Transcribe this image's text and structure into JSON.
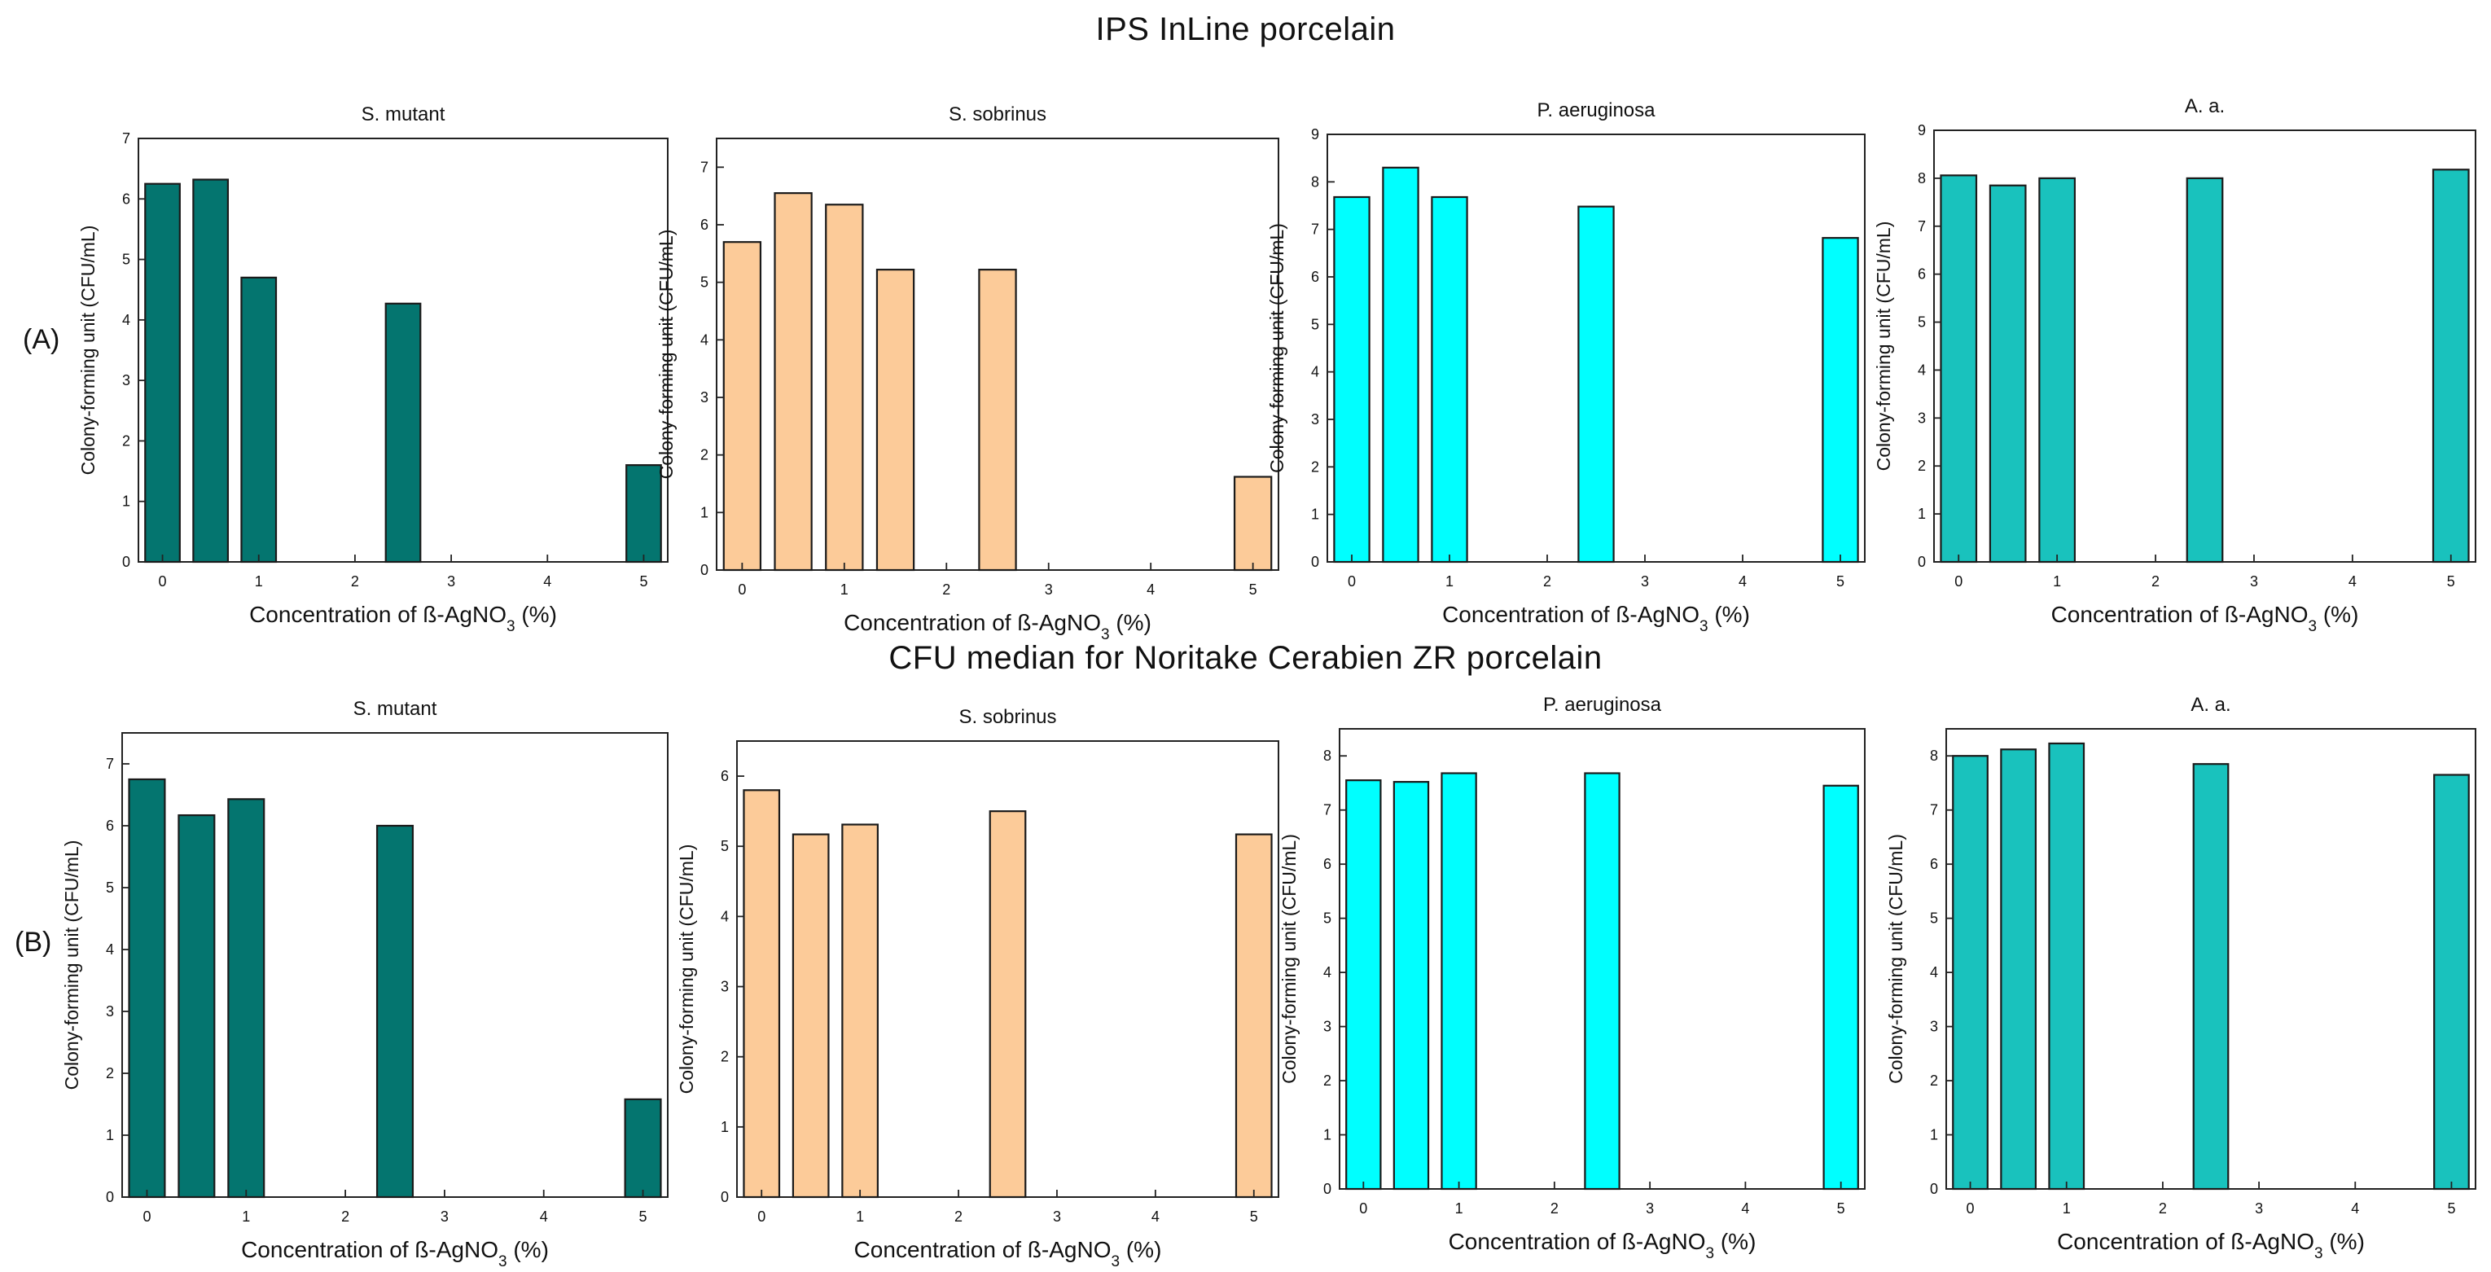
{
  "figure": {
    "title_a": "IPS InLine porcelain",
    "title_b": "CFU median for Noritake Cerabien ZR porcelain",
    "label_a": "(A)",
    "label_b": "(B)"
  },
  "chart_data": [
    {
      "type": "bar",
      "row": "A",
      "title": "S. mutant",
      "color": "#04756F",
      "categories": [
        0,
        0.5,
        1,
        1.5,
        2,
        2.5,
        3,
        4,
        5
      ],
      "values": [
        6.25,
        6.32,
        4.7,
        0,
        0,
        4.27,
        0,
        0,
        1.6
      ],
      "ylim": [
        0,
        7
      ],
      "yticks": [
        0,
        1,
        2,
        3,
        4,
        5,
        6,
        7
      ],
      "xticks": [
        0,
        1,
        2,
        3,
        4,
        5
      ],
      "xlabel": "Concentration of ß-AgNO3 (%)",
      "ylabel": "Colony-forming unit (CFU/mL)"
    },
    {
      "type": "bar",
      "row": "A",
      "title": "S. sobrinus",
      "color": "#FCCB99",
      "categories": [
        0,
        0.5,
        1,
        1.5,
        2,
        2.5,
        3,
        4,
        5
      ],
      "values": [
        5.7,
        6.55,
        6.35,
        5.22,
        0,
        5.22,
        0,
        0,
        1.62
      ],
      "ylim": [
        0,
        7.5
      ],
      "yticks": [
        0,
        1,
        2,
        3,
        4,
        5,
        6,
        7
      ],
      "xticks": [
        0,
        1,
        2,
        3,
        4,
        5
      ],
      "xlabel": "Concentration of ß-AgNO3 (%)",
      "ylabel": "Colony-forming unit (CFU/mL)"
    },
    {
      "type": "bar",
      "row": "A",
      "title": "P. aeruginosa",
      "color": "#00FFFF",
      "categories": [
        0,
        0.5,
        1,
        1.5,
        2,
        2.5,
        3,
        4,
        5
      ],
      "values": [
        7.68,
        8.3,
        7.68,
        0,
        0,
        7.48,
        0,
        0,
        6.82
      ],
      "ylim": [
        0,
        9
      ],
      "yticks": [
        0,
        1,
        2,
        3,
        4,
        5,
        6,
        7,
        8,
        9
      ],
      "xticks": [
        0,
        1,
        2,
        3,
        4,
        5
      ],
      "xlabel": "Concentration of ß-AgNO3 (%)",
      "ylabel": "Colony-forming unit (CFU/mL)"
    },
    {
      "type": "bar",
      "row": "A",
      "title": "A. a.",
      "color": "#19C2BD",
      "categories": [
        0,
        0.5,
        1,
        1.5,
        2,
        2.5,
        3,
        4,
        5
      ],
      "values": [
        8.06,
        7.85,
        8.0,
        0,
        0,
        8.0,
        0,
        0,
        8.18
      ],
      "ylim": [
        0,
        9
      ],
      "yticks": [
        0,
        1,
        2,
        3,
        4,
        5,
        6,
        7,
        8,
        9
      ],
      "xticks": [
        0,
        1,
        2,
        3,
        4,
        5
      ],
      "xlabel": "Concentration of ß-AgNO3 (%)",
      "ylabel": "Colony-forming unit (CFU/mL)"
    },
    {
      "type": "bar",
      "row": "B",
      "title": "S. mutant",
      "color": "#04756F",
      "categories": [
        0,
        0.5,
        1,
        1.5,
        2,
        2.5,
        3,
        4,
        5
      ],
      "values": [
        6.75,
        6.17,
        6.43,
        0,
        0,
        6.0,
        0,
        0,
        1.58
      ],
      "ylim": [
        0,
        7.5
      ],
      "yticks": [
        0,
        1,
        2,
        3,
        4,
        5,
        6,
        7
      ],
      "xticks": [
        0,
        1,
        2,
        3,
        4,
        5
      ],
      "xlabel": "Concentration of ß-AgNO3 (%)",
      "ylabel": "Colony-forming unit (CFU/mL)"
    },
    {
      "type": "bar",
      "row": "B",
      "title": "S. sobrinus",
      "color": "#FCCB99",
      "categories": [
        0,
        0.5,
        1,
        1.5,
        2,
        2.5,
        3,
        4,
        5
      ],
      "values": [
        5.8,
        5.17,
        5.31,
        0,
        0,
        5.5,
        0,
        0,
        5.17
      ],
      "ylim": [
        0,
        6.5
      ],
      "yticks": [
        0,
        1,
        2,
        3,
        4,
        5,
        6
      ],
      "xticks": [
        0,
        1,
        2,
        3,
        4,
        5
      ],
      "xlabel": "Concentration of ß-AgNO3 (%)",
      "ylabel": "Colony-forming unit (CFU/mL)"
    },
    {
      "type": "bar",
      "row": "B",
      "title": "P. aeruginosa",
      "color": "#00FFFF",
      "categories": [
        0,
        0.5,
        1,
        1.5,
        2,
        2.5,
        3,
        4,
        5
      ],
      "values": [
        7.55,
        7.52,
        7.68,
        0,
        0,
        7.68,
        0,
        0,
        7.45
      ],
      "ylim": [
        0,
        8.5
      ],
      "yticks": [
        0,
        1,
        2,
        3,
        4,
        5,
        6,
        7,
        8
      ],
      "xticks": [
        0,
        1,
        2,
        3,
        4,
        5
      ],
      "xlabel": "Concentration of ß-AgNO3 (%)",
      "ylabel": "Colony-forming unit (CFU/mL)"
    },
    {
      "type": "bar",
      "row": "B",
      "title": "A. a.",
      "color": "#19C2BD",
      "categories": [
        0,
        0.5,
        1,
        1.5,
        2,
        2.5,
        3,
        4,
        5
      ],
      "values": [
        8.0,
        8.12,
        8.23,
        0,
        0,
        7.85,
        0,
        0,
        7.65
      ],
      "ylim": [
        0,
        8.5
      ],
      "yticks": [
        0,
        1,
        2,
        3,
        4,
        5,
        6,
        7,
        8
      ],
      "xticks": [
        0,
        1,
        2,
        3,
        4,
        5
      ],
      "xlabel": "Concentration of ß-AgNO3 (%)",
      "ylabel": "Colony-forming unit (CFU/mL)"
    }
  ]
}
